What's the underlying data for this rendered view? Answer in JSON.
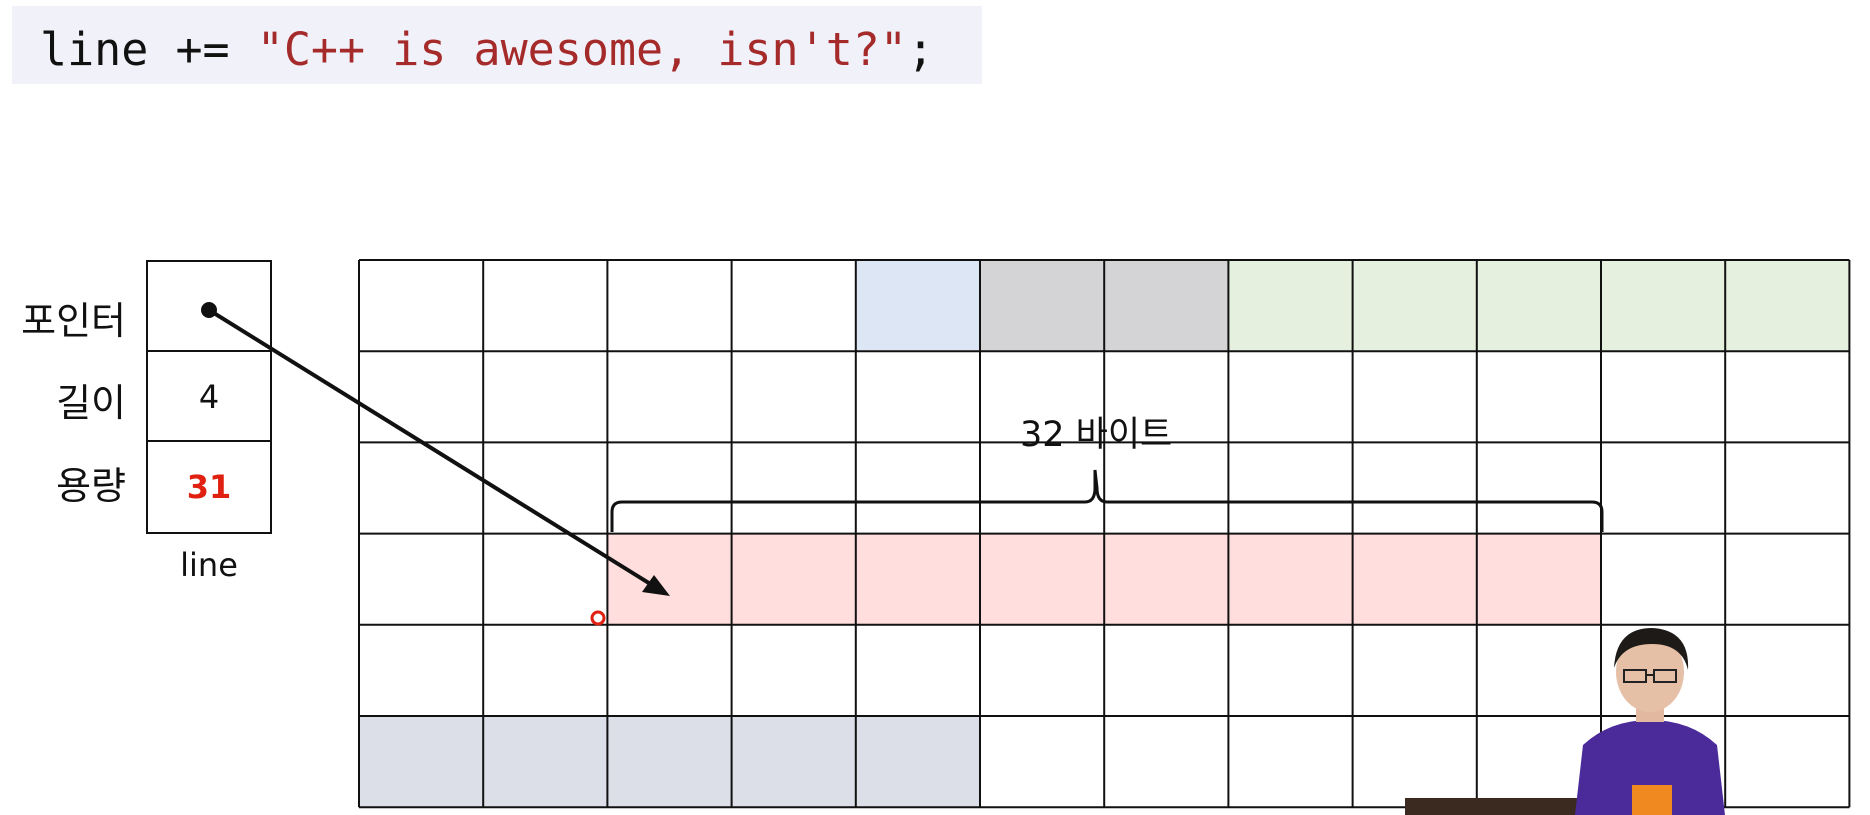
{
  "code": {
    "prefix": "line += ",
    "string": "\"C++ is awesome, isn't?\"",
    "suffix": ";"
  },
  "struct": {
    "name": "line",
    "fields": [
      {
        "label": "포인터",
        "value": ""
      },
      {
        "label": "길이",
        "value": "4"
      },
      {
        "label": "용량",
        "value": "31"
      }
    ]
  },
  "memory_grid": {
    "rows": 6,
    "cols": 12,
    "highlights": [
      {
        "row": 0,
        "col_start": 4,
        "col_end": 4,
        "color": "#dce6f4"
      },
      {
        "row": 0,
        "col_start": 5,
        "col_end": 6,
        "color": "#d4d3d6"
      },
      {
        "row": 0,
        "col_start": 7,
        "col_end": 11,
        "color": "#e5f0de"
      },
      {
        "row": 3,
        "col_start": 2,
        "col_end": 9,
        "color": "#ffdedd"
      },
      {
        "row": 5,
        "col_start": 0,
        "col_end": 4,
        "color": "#dcdfe8"
      }
    ]
  },
  "annotation": {
    "brace_label": "32 바이트"
  },
  "colors": {
    "code_string": "#a52a2a",
    "capacity_value": "#e02010",
    "cursor": "#e02010"
  }
}
